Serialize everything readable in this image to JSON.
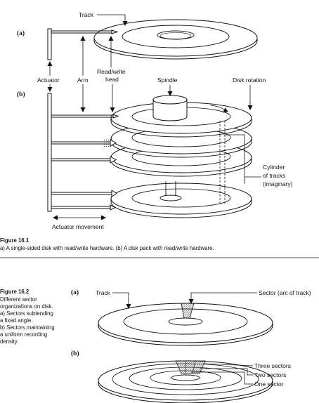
{
  "figure1": {
    "panel_a": "(a)",
    "panel_b": "(b)",
    "labels": {
      "track": "Track",
      "actuator": "Actuator",
      "arm": "Arm",
      "head_line1": "Read/write",
      "head_line2": "head",
      "spindle": "Spindle",
      "disk_rotation": "Disk rotation",
      "cylinder_line1": "Cylinder",
      "cylinder_line2": "of tracks",
      "cylinder_line3": "(imaginary)",
      "actuator_movement": "Actuator movement"
    },
    "caption_title": "Figure 16.1",
    "caption_text": "a) A single-sided disk with read/write hardware. (b) A disk pack with read/write hardware."
  },
  "figure2": {
    "caption_title": "Figure 16.2",
    "caption_lines": [
      "Different sector",
      "organizations on disk.",
      "a) Sectors subtending",
      "a fixed angle.",
      "b) Sectors maintaining",
      "a uniform recording",
      "density."
    ],
    "panel_a": "(a)",
    "panel_b": "(b)",
    "labels": {
      "track": "Track",
      "sector": "Sector (arc of track)",
      "three_sectors": "Three sectors",
      "two_sectors": "Two sectors",
      "one_sector": "One sector"
    }
  }
}
